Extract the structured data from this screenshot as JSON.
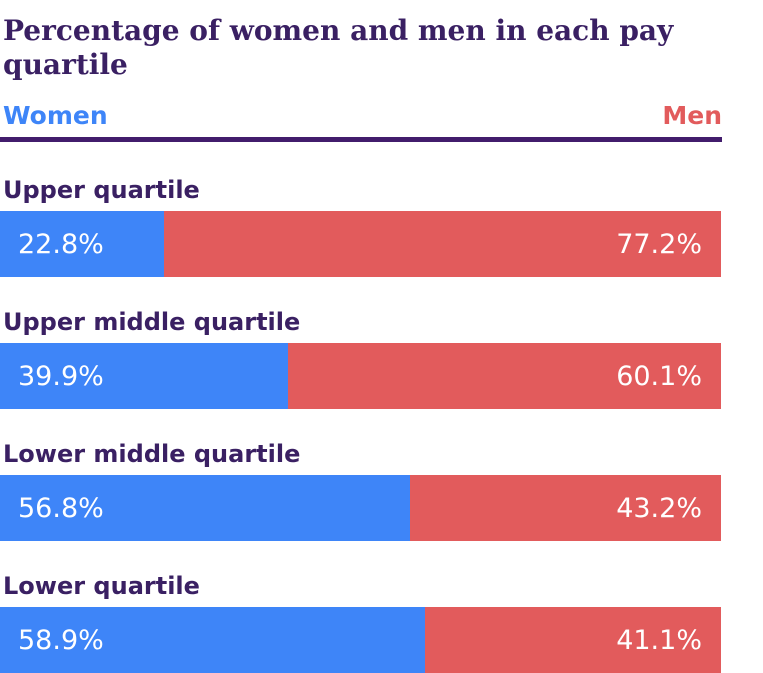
{
  "title": "Percentage of women and men in each pay quartile",
  "legend": {
    "women_label": "Women",
    "men_label": "Men"
  },
  "colors": {
    "women": "#3e85f8",
    "men": "#e25b5c",
    "title_text": "#3a2063",
    "label_text": "#3a2063",
    "divider": "#421c6c",
    "value_text": "#ffffff",
    "background": "#ffffff"
  },
  "rows": [
    {
      "label": "Upper quartile",
      "women_value": "22.8%",
      "men_value": "77.2%",
      "women_pct": 22.8,
      "men_pct": 77.2
    },
    {
      "label": "Upper middle quartile",
      "women_value": "39.9%",
      "men_value": "60.1%",
      "women_pct": 39.9,
      "men_pct": 60.1
    },
    {
      "label": "Lower middle quartile",
      "women_value": "56.8%",
      "men_value": "43.2%",
      "women_pct": 56.8,
      "men_pct": 43.2
    },
    {
      "label": "Lower quartile",
      "women_value": "58.9%",
      "men_value": "41.1%",
      "women_pct": 58.9,
      "men_pct": 41.1
    }
  ],
  "chart_data": {
    "type": "bar",
    "orientation": "horizontal-stacked",
    "title": "Percentage of women and men in each pay quartile",
    "categories": [
      "Upper quartile",
      "Upper middle quartile",
      "Lower middle quartile",
      "Lower quartile"
    ],
    "series": [
      {
        "name": "Women",
        "color": "#3e85f8",
        "values": [
          22.8,
          39.9,
          56.8,
          58.9
        ]
      },
      {
        "name": "Men",
        "color": "#e25b5c",
        "values": [
          77.2,
          60.1,
          43.2,
          41.1
        ]
      }
    ],
    "value_labels": [
      [
        "22.8%",
        "77.2%"
      ],
      [
        "39.9%",
        "60.1%"
      ],
      [
        "56.8%",
        "43.2%"
      ],
      [
        "58.9%",
        "41.1%"
      ]
    ],
    "xlim": [
      0,
      100
    ],
    "grid": false,
    "legend_position": "top"
  }
}
